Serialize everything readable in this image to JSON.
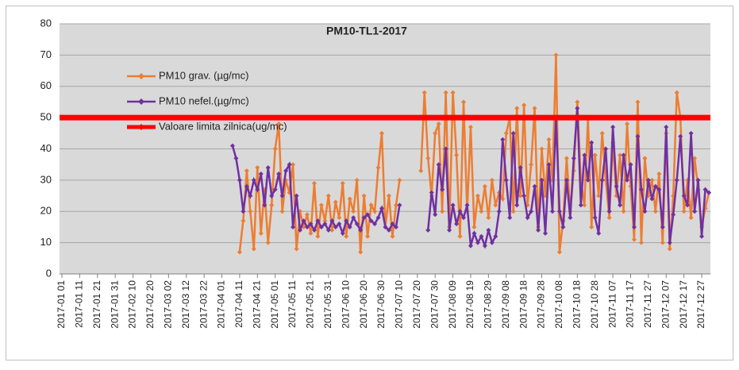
{
  "chart_data": {
    "type": "line",
    "title": "PM10-TL1-2017",
    "xlim": [
      1,
      365
    ],
    "xticks": [
      {
        "value": 1,
        "label": "2017-01 01"
      },
      {
        "value": 11,
        "label": "2017-01 11"
      },
      {
        "value": 21,
        "label": "2017-01 21"
      },
      {
        "value": 31,
        "label": "2017-01 31"
      },
      {
        "value": 41,
        "label": "2017-02 10"
      },
      {
        "value": 51,
        "label": "2017-02 20"
      },
      {
        "value": 61,
        "label": "2017-03 02"
      },
      {
        "value": 71,
        "label": "2017-03 12"
      },
      {
        "value": 81,
        "label": "2017-03 22"
      },
      {
        "value": 91,
        "label": "2017-04 01"
      },
      {
        "value": 101,
        "label": "2017-04 11"
      },
      {
        "value": 111,
        "label": "2017-04 21"
      },
      {
        "value": 121,
        "label": "2017-05 01"
      },
      {
        "value": 131,
        "label": "2017-05 11"
      },
      {
        "value": 141,
        "label": "2017-05 21"
      },
      {
        "value": 151,
        "label": "2017-05 31"
      },
      {
        "value": 161,
        "label": "2017-06 10"
      },
      {
        "value": 171,
        "label": "2017-06 20"
      },
      {
        "value": 181,
        "label": "2017-06 30"
      },
      {
        "value": 191,
        "label": "2017-07 10"
      },
      {
        "value": 201,
        "label": "2017-07 20"
      },
      {
        "value": 211,
        "label": "2017-07 30"
      },
      {
        "value": 221,
        "label": "2017-08 09"
      },
      {
        "value": 231,
        "label": "2017-08 19"
      },
      {
        "value": 241,
        "label": "2017-08 29"
      },
      {
        "value": 251,
        "label": "2017-09 08"
      },
      {
        "value": 261,
        "label": "2017-09 18"
      },
      {
        "value": 271,
        "label": "2017-09 28"
      },
      {
        "value": 281,
        "label": "2017-10 08"
      },
      {
        "value": 291,
        "label": "2017-10 18"
      },
      {
        "value": 301,
        "label": "2017-10 28"
      },
      {
        "value": 311,
        "label": "2017-11 07"
      },
      {
        "value": 321,
        "label": "2017-11 17"
      },
      {
        "value": 331,
        "label": "2017-11 27"
      },
      {
        "value": 341,
        "label": "2017-12 07"
      },
      {
        "value": 351,
        "label": "2017-12 17"
      },
      {
        "value": 361,
        "label": "2017-12 27"
      }
    ],
    "ylim": [
      0,
      80
    ],
    "yticks": [
      0,
      10,
      20,
      30,
      40,
      50,
      60,
      70,
      80
    ],
    "grid": true,
    "x": [
      97,
      99,
      101,
      103,
      105,
      107,
      109,
      111,
      113,
      115,
      117,
      119,
      121,
      123,
      125,
      127,
      129,
      131,
      133,
      135,
      137,
      139,
      141,
      143,
      145,
      147,
      149,
      151,
      153,
      155,
      157,
      159,
      161,
      163,
      165,
      167,
      169,
      171,
      173,
      175,
      177,
      179,
      181,
      183,
      185,
      187,
      189,
      191,
      193,
      195,
      197,
      199,
      201,
      203,
      205,
      207,
      209,
      211,
      213,
      215,
      217,
      219,
      221,
      223,
      225,
      227,
      229,
      231,
      233,
      235,
      237,
      239,
      241,
      243,
      245,
      247,
      249,
      251,
      253,
      255,
      257,
      259,
      261,
      263,
      265,
      267,
      269,
      271,
      273,
      275,
      277,
      279,
      281,
      283,
      285,
      287,
      289,
      291,
      293,
      295,
      297,
      299,
      301,
      303,
      305,
      307,
      309,
      311,
      313,
      315,
      317,
      319,
      321,
      323,
      325,
      327,
      329,
      331,
      333,
      335,
      337,
      339,
      341,
      343,
      345,
      347,
      349,
      351,
      353,
      355,
      357,
      359,
      361,
      363,
      365
    ],
    "series": [
      {
        "name": "PM10 grav. (µg/mc)",
        "color": "#ed7d31",
        "values": [
          null,
          null,
          7,
          17,
          33,
          20,
          8,
          34,
          13,
          27,
          10,
          22,
          40,
          48,
          20,
          30,
          26,
          35,
          8,
          20,
          15,
          19,
          13,
          29,
          12,
          22,
          17,
          25,
          14,
          23,
          18,
          29,
          12,
          24,
          20,
          30,
          7,
          25,
          12,
          22,
          20,
          34,
          45,
          15,
          25,
          12,
          22,
          30,
          null,
          null,
          null,
          null,
          null,
          33,
          58,
          37,
          25,
          45,
          48,
          20,
          58,
          15,
          58,
          38,
          12,
          55,
          20,
          47,
          15,
          25,
          20,
          28,
          18,
          30,
          22,
          26,
          24,
          45,
          50,
          20,
          53,
          25,
          54,
          22,
          35,
          53,
          15,
          40,
          25,
          43,
          30,
          70,
          7,
          17,
          37,
          20,
          33,
          55,
          30,
          22,
          50,
          15,
          38,
          25,
          45,
          30,
          18,
          42,
          25,
          38,
          20,
          48,
          28,
          11,
          55,
          10,
          37,
          25,
          30,
          20,
          32,
          10,
          45,
          8,
          25,
          58,
          50,
          20,
          30,
          18,
          37,
          27,
          15,
          21,
          26
        ]
      },
      {
        "name": "PM10 nefel.(µg/mc)",
        "color": "#7030a0",
        "values": [
          41,
          37,
          30,
          20,
          28,
          25,
          30,
          27,
          32,
          22,
          34,
          25,
          27,
          32,
          25,
          33,
          35,
          15,
          25,
          14,
          17,
          15,
          16,
          14,
          17,
          15,
          16,
          14,
          17,
          15,
          16,
          13,
          17,
          15,
          18,
          16,
          14,
          18,
          19,
          17,
          16,
          18,
          21,
          15,
          14,
          16,
          15,
          22,
          null,
          null,
          null,
          null,
          null,
          null,
          null,
          14,
          26,
          19,
          35,
          27,
          40,
          14,
          22,
          16,
          20,
          18,
          22,
          9,
          13,
          10,
          12,
          9,
          14,
          10,
          12,
          20,
          43,
          30,
          18,
          45,
          22,
          34,
          25,
          18,
          20,
          28,
          14,
          30,
          13,
          35,
          20,
          50,
          20,
          15,
          30,
          18,
          37,
          53,
          22,
          38,
          30,
          42,
          18,
          13,
          30,
          40,
          20,
          47,
          28,
          22,
          38,
          30,
          35,
          15,
          44,
          27,
          20,
          30,
          24,
          28,
          27,
          15,
          47,
          10,
          19,
          30,
          44,
          25,
          22,
          45,
          20,
          30,
          12,
          27,
          26
        ]
      }
    ],
    "limit": {
      "name": "Valoare limita zilnica(ug/mc)",
      "color": "#ff0000",
      "value": 50
    }
  }
}
